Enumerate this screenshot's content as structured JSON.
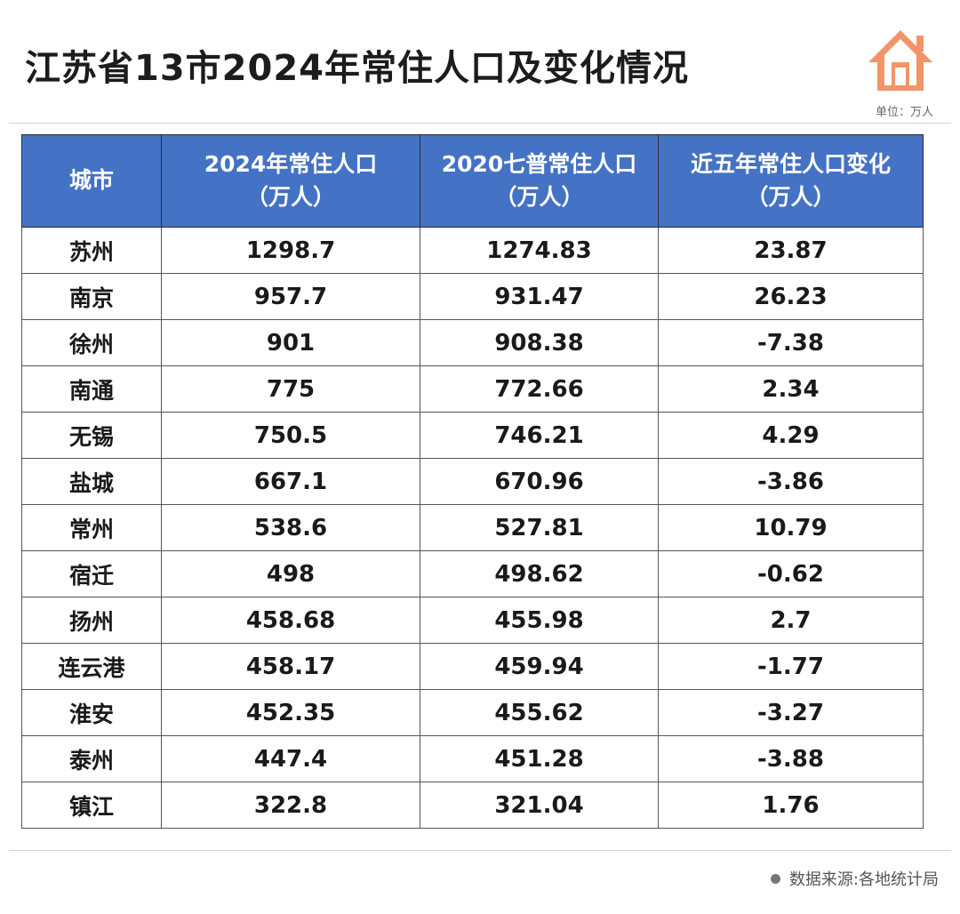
{
  "title": "江苏省13市2024年常住人口及变化情况",
  "icon": "house-icon",
  "unit_label": "单位：万人",
  "source_text": "数据来源:各地统计局",
  "colors": {
    "header_bg": "#4472c4",
    "icon": "#f0956a"
  },
  "table": {
    "headers": [
      {
        "line1": "城市",
        "line2": ""
      },
      {
        "line1": "2024年常住人口",
        "line2": "（万人）"
      },
      {
        "line1": "2020七普常住人口",
        "line2": "（万人）"
      },
      {
        "line1": "近五年常住人口变化",
        "line2": "（万人）"
      }
    ],
    "rows": [
      [
        "苏州",
        "1298.7",
        "1274.83",
        "23.87"
      ],
      [
        "南京",
        "957.7",
        "931.47",
        "26.23"
      ],
      [
        "徐州",
        "901",
        "908.38",
        "-7.38"
      ],
      [
        "南通",
        "775",
        "772.66",
        "2.34"
      ],
      [
        "无锡",
        "750.5",
        "746.21",
        "4.29"
      ],
      [
        "盐城",
        "667.1",
        "670.96",
        "-3.86"
      ],
      [
        "常州",
        "538.6",
        "527.81",
        "10.79"
      ],
      [
        "宿迁",
        "498",
        "498.62",
        "-0.62"
      ],
      [
        "扬州",
        "458.68",
        "455.98",
        "2.7"
      ],
      [
        "连云港",
        "458.17",
        "459.94",
        "-1.77"
      ],
      [
        "淮安",
        "452.35",
        "455.62",
        "-3.27"
      ],
      [
        "泰州",
        "447.4",
        "451.28",
        "-3.88"
      ],
      [
        "镇江",
        "322.8",
        "321.04",
        "1.76"
      ]
    ]
  }
}
